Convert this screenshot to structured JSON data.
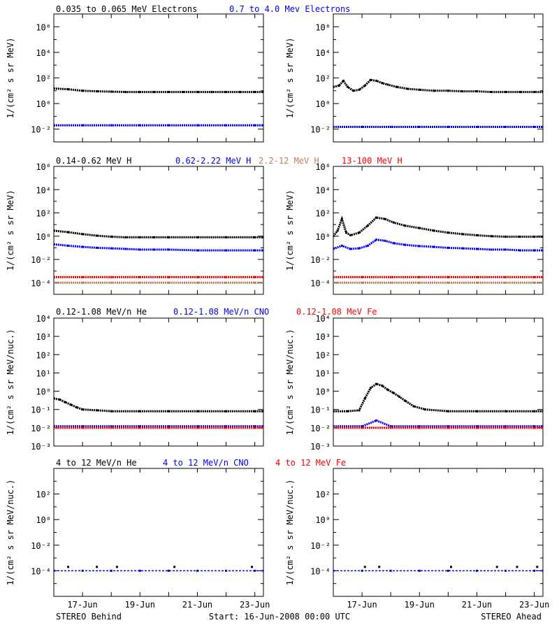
{
  "colors": {
    "black": "#000000",
    "blue": "#0000ff",
    "red": "#ff0000",
    "tan": "#c08060"
  },
  "chart_data": [
    {
      "type": "scatter",
      "legend": [
        {
          "text": "0.035 to 0.065 MeV Electrons",
          "color": "#000000"
        },
        {
          "text": "0.7 to 4.0 Mev Electrons",
          "color": "#0000ff"
        }
      ],
      "ylabel": "1/(cm² s sr MeV)",
      "y_scale": "log",
      "ylim": [
        0.001,
        10000000
      ],
      "ytick_exponents": [
        -2,
        0,
        2,
        4,
        6
      ],
      "xlim": [
        0,
        7.3
      ],
      "panels": [
        {
          "side": "STEREO Behind",
          "series": [
            {
              "color": "#000000",
              "x": [
                0,
                0.5,
                1,
                1.5,
                2,
                2.5,
                3,
                3.5,
                4,
                4.5,
                5,
                5.5,
                6,
                6.5,
                7,
                7.3
              ],
              "y": [
                15,
                13,
                10,
                9,
                8.5,
                8,
                8,
                8,
                8,
                8,
                8,
                8,
                8,
                8,
                8,
                8
              ]
            },
            {
              "color": "#0000ff",
              "x": [
                0,
                1,
                2,
                3,
                4,
                5,
                6,
                7,
                7.3
              ],
              "y": [
                0.02,
                0.02,
                0.02,
                0.02,
                0.02,
                0.02,
                0.02,
                0.02,
                0.02
              ]
            }
          ]
        },
        {
          "side": "STEREO Ahead",
          "series": [
            {
              "color": "#000000",
              "x": [
                0,
                0.2,
                0.35,
                0.5,
                0.7,
                0.9,
                1.1,
                1.3,
                1.5,
                1.7,
                1.9,
                2.2,
                2.6,
                3,
                3.5,
                4,
                4.5,
                5,
                5.5,
                6,
                6.5,
                7,
                7.3
              ],
              "y": [
                20,
                25,
                60,
                20,
                10,
                12,
                25,
                70,
                60,
                40,
                30,
                20,
                14,
                12,
                10,
                10,
                9,
                9,
                8,
                8,
                8,
                8,
                8
              ]
            },
            {
              "color": "#0000ff",
              "x": [
                0,
                1,
                2,
                3,
                4,
                5,
                6,
                7,
                7.3
              ],
              "y": [
                0.015,
                0.015,
                0.015,
                0.015,
                0.015,
                0.015,
                0.015,
                0.015,
                0.015
              ]
            }
          ]
        }
      ]
    },
    {
      "type": "scatter",
      "legend": [
        {
          "text": "0.14-0.62 MeV H",
          "color": "#000000"
        },
        {
          "text": "0.62-2.22 MeV H",
          "color": "#0000ff"
        },
        {
          "text": "2.2-12 MeV H",
          "color": "#c08060"
        },
        {
          "text": "13-100 MeV H",
          "color": "#ff0000"
        }
      ],
      "ylabel": "1/(cm² s sr MeV)",
      "y_scale": "log",
      "ylim": [
        1e-05,
        1000000
      ],
      "ytick_exponents": [
        -4,
        -2,
        0,
        2,
        4,
        6
      ],
      "xlim": [
        0,
        7.3
      ],
      "panels": [
        {
          "side": "STEREO Behind",
          "series": [
            {
              "color": "#000000",
              "x": [
                0,
                0.5,
                1,
                1.5,
                2,
                2.5,
                3,
                3.5,
                4,
                5,
                6,
                7,
                7.3
              ],
              "y": [
                3,
                2.2,
                1.5,
                1.1,
                0.9,
                0.8,
                0.8,
                0.8,
                0.8,
                0.8,
                0.8,
                0.8,
                0.8
              ]
            },
            {
              "color": "#0000ff",
              "x": [
                0,
                0.5,
                1,
                1.5,
                2,
                2.5,
                3,
                3.5,
                4,
                5,
                6,
                7,
                7.3
              ],
              "y": [
                0.2,
                0.15,
                0.12,
                0.1,
                0.09,
                0.08,
                0.07,
                0.07,
                0.07,
                0.06,
                0.06,
                0.06,
                0.06
              ]
            },
            {
              "color": "#c08060",
              "x": [
                0,
                1,
                2,
                3,
                4,
                5,
                6,
                7,
                7.3
              ],
              "y": [
                0.0001,
                0.0001,
                0.0001,
                0.0001,
                0.0001,
                0.0001,
                0.0001,
                0.0001,
                0.0001
              ]
            },
            {
              "color": "#ff0000",
              "x": [
                0,
                1,
                2,
                3,
                4,
                5,
                6,
                7,
                7.3
              ],
              "y": [
                0.0003,
                0.0003,
                0.0003,
                0.0003,
                0.0003,
                0.0003,
                0.0003,
                0.0003,
                0.0003
              ]
            }
          ]
        },
        {
          "side": "STEREO Ahead",
          "series": [
            {
              "color": "#000000",
              "x": [
                0,
                0.15,
                0.3,
                0.45,
                0.6,
                0.9,
                1.2,
                1.5,
                1.8,
                2.1,
                2.5,
                3,
                3.5,
                4,
                4.5,
                5,
                5.5,
                6,
                6.5,
                7,
                7.3
              ],
              "y": [
                1,
                3,
                30,
                2,
                1.2,
                2,
                8,
                40,
                30,
                15,
                8,
                5,
                3,
                2,
                1.5,
                1.2,
                1,
                0.9,
                0.9,
                0.9,
                0.9
              ]
            },
            {
              "color": "#0000ff",
              "x": [
                0,
                0.3,
                0.6,
                0.9,
                1.2,
                1.5,
                1.8,
                2.1,
                2.5,
                3,
                3.5,
                4,
                4.5,
                5,
                5.5,
                6,
                6.5,
                7,
                7.3
              ],
              "y": [
                0.08,
                0.15,
                0.08,
                0.09,
                0.15,
                0.5,
                0.4,
                0.25,
                0.18,
                0.14,
                0.12,
                0.1,
                0.09,
                0.08,
                0.07,
                0.07,
                0.06,
                0.06,
                0.06
              ]
            },
            {
              "color": "#c08060",
              "x": [
                0,
                1,
                2,
                3,
                4,
                5,
                6,
                7,
                7.3
              ],
              "y": [
                0.0001,
                0.0001,
                0.0001,
                0.0001,
                0.0001,
                0.0001,
                0.0001,
                0.0001,
                0.0001
              ]
            },
            {
              "color": "#ff0000",
              "x": [
                0,
                1,
                2,
                3,
                4,
                5,
                6,
                7,
                7.3
              ],
              "y": [
                0.0003,
                0.0003,
                0.0003,
                0.0003,
                0.0003,
                0.0003,
                0.0003,
                0.0003,
                0.0003
              ]
            }
          ]
        }
      ]
    },
    {
      "type": "scatter",
      "legend": [
        {
          "text": "0.12-1.08 MeV/n He",
          "color": "#000000"
        },
        {
          "text": "0.12-1.08 MeV/n CNO",
          "color": "#0000ff"
        },
        {
          "text": "0.12-1.08 MeV Fe",
          "color": "#ff0000"
        }
      ],
      "ylabel": "1/(cm² s sr MeV/nuc.)",
      "y_scale": "log",
      "ylim": [
        0.001,
        10000
      ],
      "ytick_exponents": [
        -3,
        -2,
        -1,
        0,
        1,
        2,
        3,
        4
      ],
      "xlim": [
        0,
        7.3
      ],
      "panels": [
        {
          "side": "STEREO Behind",
          "series": [
            {
              "color": "#000000",
              "x": [
                0,
                0.2,
                0.4,
                0.6,
                0.8,
                1,
                1.5,
                2,
                3,
                4,
                5,
                6,
                7,
                7.3
              ],
              "y": [
                0.4,
                0.35,
                0.25,
                0.18,
                0.13,
                0.1,
                0.09,
                0.08,
                0.08,
                0.08,
                0.08,
                0.08,
                0.08,
                0.08
              ]
            },
            {
              "color": "#0000ff",
              "x": [
                0,
                1,
                2,
                3,
                4,
                5,
                6,
                7,
                7.3
              ],
              "y": [
                0.012,
                0.012,
                0.012,
                0.012,
                0.012,
                0.012,
                0.012,
                0.012,
                0.012
              ]
            },
            {
              "color": "#ff0000",
              "x": [
                0,
                1,
                2,
                3,
                4,
                5,
                6,
                7,
                7.3
              ],
              "y": [
                0.01,
                0.01,
                0.01,
                0.01,
                0.01,
                0.01,
                0.01,
                0.01,
                0.01
              ]
            }
          ]
        },
        {
          "side": "STEREO Ahead",
          "series": [
            {
              "color": "#000000",
              "x": [
                0,
                0.5,
                0.9,
                1.1,
                1.3,
                1.5,
                1.7,
                1.9,
                2.1,
                2.3,
                2.5,
                2.8,
                3.2,
                4,
                5,
                6,
                7,
                7.3
              ],
              "y": [
                0.08,
                0.08,
                0.09,
                0.4,
                1.5,
                2.5,
                2,
                1.2,
                0.8,
                0.5,
                0.3,
                0.15,
                0.1,
                0.08,
                0.08,
                0.08,
                0.08,
                0.08
              ]
            },
            {
              "color": "#0000ff",
              "x": [
                0,
                1,
                1.5,
                2,
                3,
                4,
                5,
                6,
                7,
                7.3
              ],
              "y": [
                0.012,
                0.012,
                0.025,
                0.012,
                0.012,
                0.012,
                0.012,
                0.012,
                0.012,
                0.012
              ]
            },
            {
              "color": "#ff0000",
              "x": [
                0,
                1,
                2,
                3,
                4,
                5,
                6,
                7,
                7.3
              ],
              "y": [
                0.01,
                0.01,
                0.01,
                0.01,
                0.01,
                0.01,
                0.01,
                0.01,
                0.01
              ]
            }
          ]
        }
      ]
    },
    {
      "type": "scatter",
      "legend": [
        {
          "text": "4 to 12 MeV/n He",
          "color": "#000000"
        },
        {
          "text": "4 to 12 MeV/n CNO",
          "color": "#0000ff"
        },
        {
          "text": "4 to 12 MeV Fe",
          "color": "#ff0000"
        }
      ],
      "ylabel": "1/(cm² s sr MeV/nuc.)",
      "y_scale": "log",
      "ylim": [
        1e-06,
        10000
      ],
      "ytick_exponents": [
        -4,
        -2,
        0,
        2
      ],
      "xlim": [
        0,
        7.3
      ],
      "panels": [
        {
          "side": "STEREO Behind",
          "series": [
            {
              "color": "#0000ff",
              "x": [
                0,
                1,
                2,
                3,
                4,
                5,
                6,
                7,
                7.3
              ],
              "y": [
                0.0001,
                0.0001,
                0.0001,
                0.0001,
                0.0001,
                0.0001,
                0.0001,
                0.0001,
                0.0001
              ]
            },
            {
              "color": "#000000",
              "x": [
                0.5,
                1.5,
                2.2,
                4.2,
                6.9
              ],
              "y": [
                0.0002,
                0.0002,
                0.0002,
                0.0002,
                0.0002
              ]
            }
          ]
        },
        {
          "side": "STEREO Ahead",
          "series": [
            {
              "color": "#0000ff",
              "x": [
                0,
                1,
                2,
                3,
                4,
                5,
                6,
                7,
                7.3
              ],
              "y": [
                0.0001,
                0.0001,
                0.0001,
                0.0001,
                0.0001,
                0.0001,
                0.0001,
                0.0001,
                0.0001
              ]
            },
            {
              "color": "#000000",
              "x": [
                1.1,
                1.6,
                4.1,
                5.7,
                6.4,
                7.1
              ],
              "y": [
                0.0002,
                0.0002,
                0.0002,
                0.0002,
                0.0002,
                0.0002
              ]
            }
          ]
        }
      ]
    }
  ],
  "x_axis": {
    "tick_labels": [
      {
        "x": 1,
        "label": "17-Jun"
      },
      {
        "x": 3,
        "label": "19-Jun"
      },
      {
        "x": 5,
        "label": "21-Jun"
      },
      {
        "x": 7,
        "label": "23-Jun"
      }
    ]
  },
  "footer": {
    "left": "STEREO Behind",
    "center": "Start: 16-Jun-2008 00:00 UTC",
    "right": "STEREO Ahead"
  }
}
